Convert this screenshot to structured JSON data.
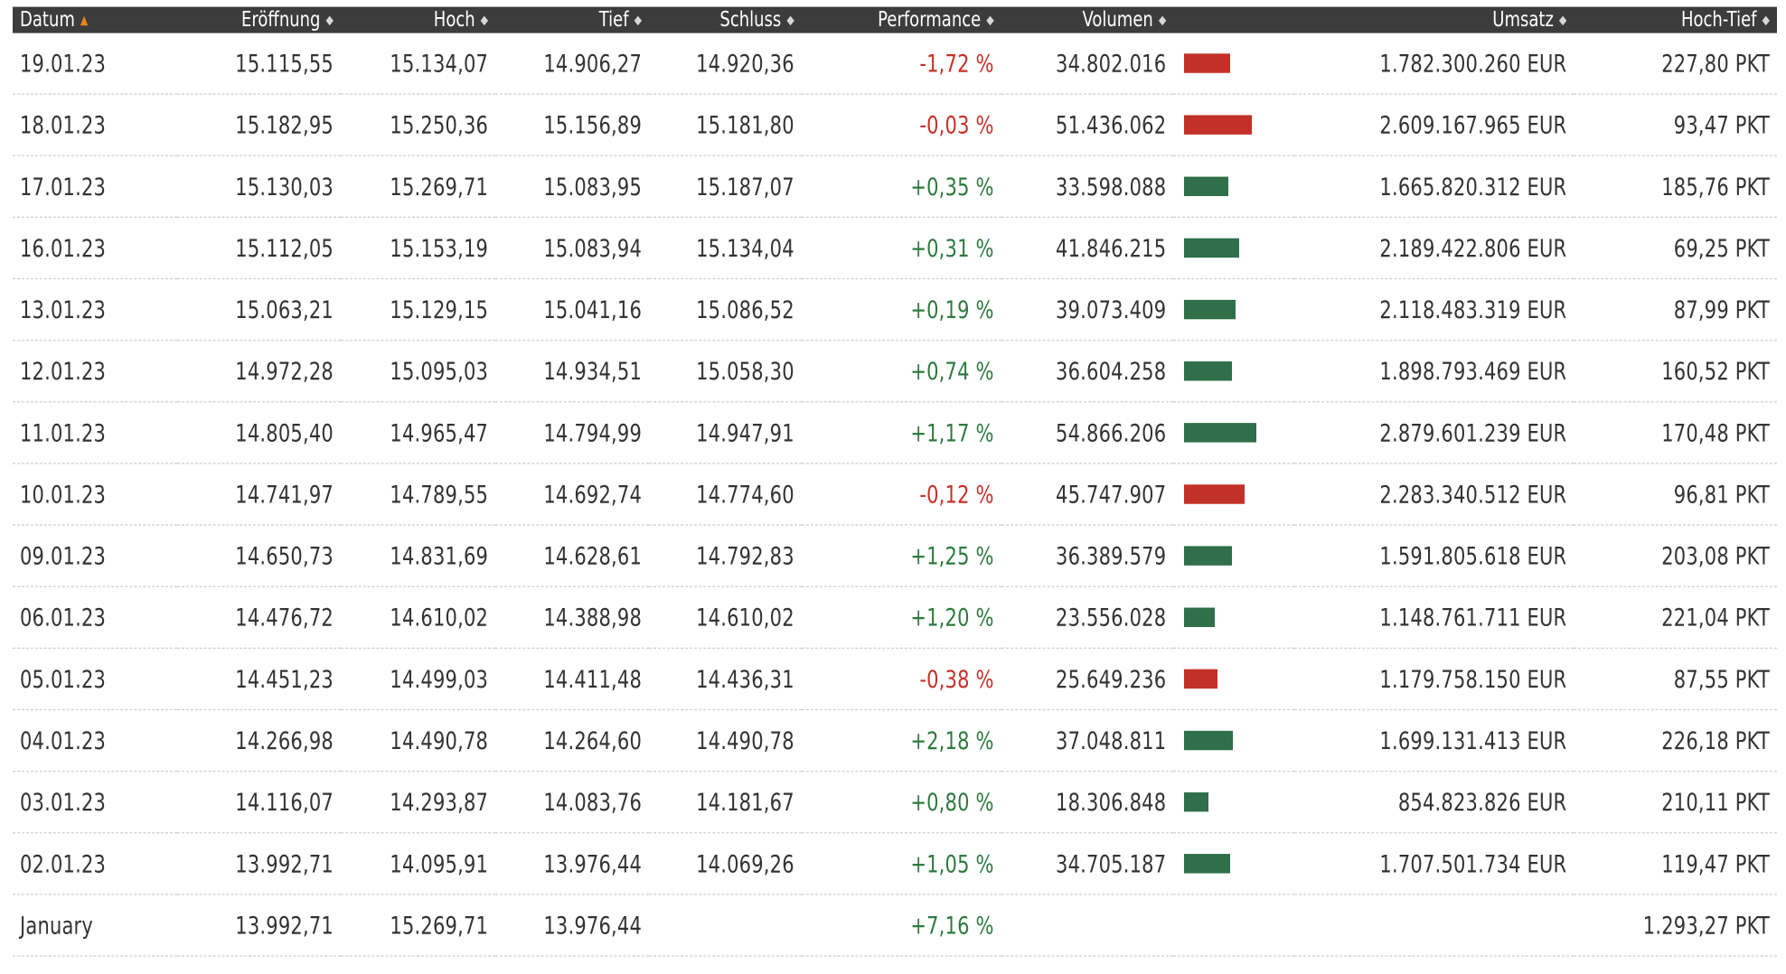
{
  "headers": [
    "Datum",
    "Eröffnung",
    "Hoch",
    "Tief",
    "Schluss",
    "Performance",
    "Volumen",
    "Umsatz",
    "Hoch-Tief"
  ],
  "colors": {
    "header_bg": "#3c3c3c",
    "positive": "#2d7a3e",
    "negative": "#c8302a",
    "bar_up": "#2f6f49",
    "bar_down": "#c13127",
    "sort_active": "#e8841e"
  },
  "rows": [
    {
      "date": "19.01.23",
      "open": "15.115,55",
      "high": "15.134,07",
      "low": "14.906,27",
      "close": "14.920,36",
      "perf": "-1,72 %",
      "dir": "down",
      "volume": "34.802.016",
      "volume_value": 34802016,
      "turnover": "1.782.300.260 EUR",
      "range": "227,80 PKT"
    },
    {
      "date": "18.01.23",
      "open": "15.182,95",
      "high": "15.250,36",
      "low": "15.156,89",
      "close": "15.181,80",
      "perf": "-0,03 %",
      "dir": "down",
      "volume": "51.436.062",
      "volume_value": 51436062,
      "turnover": "2.609.167.965 EUR",
      "range": "93,47 PKT"
    },
    {
      "date": "17.01.23",
      "open": "15.130,03",
      "high": "15.269,71",
      "low": "15.083,95",
      "close": "15.187,07",
      "perf": "+0,35 %",
      "dir": "up",
      "volume": "33.598.088",
      "volume_value": 33598088,
      "turnover": "1.665.820.312 EUR",
      "range": "185,76 PKT"
    },
    {
      "date": "16.01.23",
      "open": "15.112,05",
      "high": "15.153,19",
      "low": "15.083,94",
      "close": "15.134,04",
      "perf": "+0,31 %",
      "dir": "up",
      "volume": "41.846.215",
      "volume_value": 41846215,
      "turnover": "2.189.422.806 EUR",
      "range": "69,25 PKT"
    },
    {
      "date": "13.01.23",
      "open": "15.063,21",
      "high": "15.129,15",
      "low": "15.041,16",
      "close": "15.086,52",
      "perf": "+0,19 %",
      "dir": "up",
      "volume": "39.073.409",
      "volume_value": 39073409,
      "turnover": "2.118.483.319 EUR",
      "range": "87,99 PKT"
    },
    {
      "date": "12.01.23",
      "open": "14.972,28",
      "high": "15.095,03",
      "low": "14.934,51",
      "close": "15.058,30",
      "perf": "+0,74 %",
      "dir": "up",
      "volume": "36.604.258",
      "volume_value": 36604258,
      "turnover": "1.898.793.469 EUR",
      "range": "160,52 PKT"
    },
    {
      "date": "11.01.23",
      "open": "14.805,40",
      "high": "14.965,47",
      "low": "14.794,99",
      "close": "14.947,91",
      "perf": "+1,17 %",
      "dir": "up",
      "volume": "54.866.206",
      "volume_value": 54866206,
      "turnover": "2.879.601.239 EUR",
      "range": "170,48 PKT"
    },
    {
      "date": "10.01.23",
      "open": "14.741,97",
      "high": "14.789,55",
      "low": "14.692,74",
      "close": "14.774,60",
      "perf": "-0,12 %",
      "dir": "down",
      "volume": "45.747.907",
      "volume_value": 45747907,
      "turnover": "2.283.340.512 EUR",
      "range": "96,81 PKT"
    },
    {
      "date": "09.01.23",
      "open": "14.650,73",
      "high": "14.831,69",
      "low": "14.628,61",
      "close": "14.792,83",
      "perf": "+1,25 %",
      "dir": "up",
      "volume": "36.389.579",
      "volume_value": 36389579,
      "turnover": "1.591.805.618 EUR",
      "range": "203,08 PKT"
    },
    {
      "date": "06.01.23",
      "open": "14.476,72",
      "high": "14.610,02",
      "low": "14.388,98",
      "close": "14.610,02",
      "perf": "+1,20 %",
      "dir": "up",
      "volume": "23.556.028",
      "volume_value": 23556028,
      "turnover": "1.148.761.711 EUR",
      "range": "221,04 PKT"
    },
    {
      "date": "05.01.23",
      "open": "14.451,23",
      "high": "14.499,03",
      "low": "14.411,48",
      "close": "14.436,31",
      "perf": "-0,38 %",
      "dir": "down",
      "volume": "25.649.236",
      "volume_value": 25649236,
      "turnover": "1.179.758.150 EUR",
      "range": "87,55 PKT"
    },
    {
      "date": "04.01.23",
      "open": "14.266,98",
      "high": "14.490,78",
      "low": "14.264,60",
      "close": "14.490,78",
      "perf": "+2,18 %",
      "dir": "up",
      "volume": "37.048.811",
      "volume_value": 37048811,
      "turnover": "1.699.131.413 EUR",
      "range": "226,18 PKT"
    },
    {
      "date": "03.01.23",
      "open": "14.116,07",
      "high": "14.293,87",
      "low": "14.083,76",
      "close": "14.181,67",
      "perf": "+0,80 %",
      "dir": "up",
      "volume": "18.306.848",
      "volume_value": 18306848,
      "turnover": "854.823.826 EUR",
      "range": "210,11 PKT"
    },
    {
      "date": "02.01.23",
      "open": "13.992,71",
      "high": "14.095,91",
      "low": "13.976,44",
      "close": "14.069,26",
      "perf": "+1,05 %",
      "dir": "up",
      "volume": "34.705.187",
      "volume_value": 34705187,
      "turnover": "1.707.501.734 EUR",
      "range": "119,47 PKT"
    }
  ],
  "summary": {
    "label": "January",
    "open": "13.992,71",
    "high": "15.269,71",
    "low": "13.976,44",
    "close": "",
    "perf": "+7,16 %",
    "dir": "up",
    "volume": "",
    "turnover": "",
    "range": "1.293,27 PKT"
  }
}
